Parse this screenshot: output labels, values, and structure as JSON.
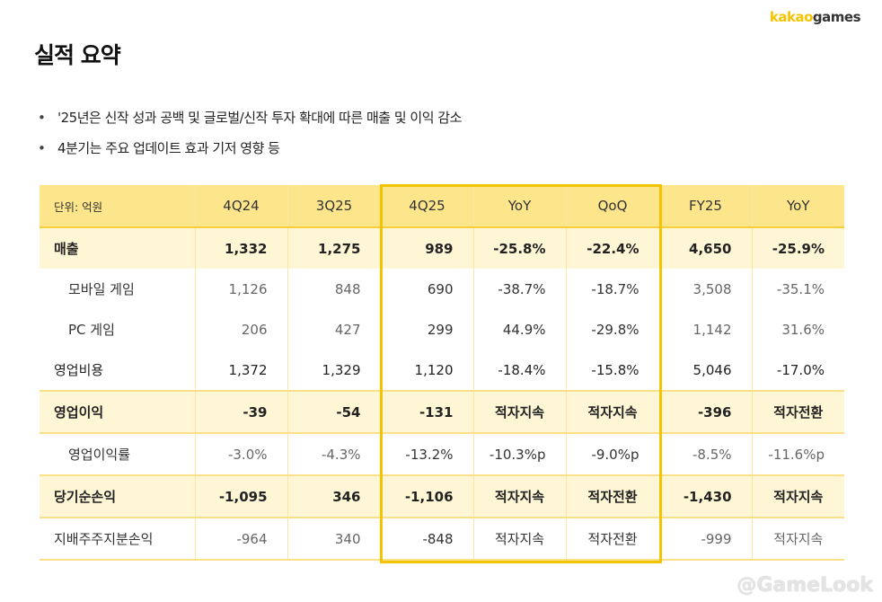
{
  "logo": {
    "part1": "kakao",
    "part2": "games"
  },
  "title": "실적 요약",
  "bullets": [
    "'25년은 신작 성과 공백 및 글로벌/신작 투자 확대에 따른 매출 및 이익 감소",
    "4분기는 주요 업데이트 효과 기저 영향 등"
  ],
  "table": {
    "unit": "단위: 억원",
    "columns": [
      "4Q24",
      "3Q25",
      "4Q25",
      "YoY",
      "QoQ",
      "FY25",
      "YoY"
    ],
    "highlighted_columns": [
      "4Q25",
      "YoY",
      "QoQ"
    ],
    "rows": [
      {
        "label": "매출",
        "values": [
          "1,332",
          "1,275",
          "989",
          "-25.8%",
          "-22.4%",
          "4,650",
          "-25.9%"
        ]
      },
      {
        "label": "모바일 게임",
        "values": [
          "1,126",
          "848",
          "690",
          "-38.7%",
          "-18.7%",
          "3,508",
          "-35.1%"
        ]
      },
      {
        "label": "PC 게임",
        "values": [
          "206",
          "427",
          "299",
          "44.9%",
          "-29.8%",
          "1,142",
          "31.6%"
        ]
      },
      {
        "label": "영업비용",
        "values": [
          "1,372",
          "1,329",
          "1,120",
          "-18.4%",
          "-15.8%",
          "5,046",
          "-17.0%"
        ]
      },
      {
        "label": "영업이익",
        "values": [
          "-39",
          "-54",
          "-131",
          "적자지속",
          "적자지속",
          "-396",
          "적자전환"
        ]
      },
      {
        "label": "영업이익률",
        "values": [
          "-3.0%",
          "-4.3%",
          "-13.2%",
          "-10.3%p",
          "-9.0%p",
          "-8.5%",
          "-11.6%p"
        ]
      },
      {
        "label": "당기순손익",
        "values": [
          "-1,095",
          "346",
          "-1,106",
          "적자지속",
          "적자전환",
          "-1,430",
          "적자지속"
        ]
      },
      {
        "label": "지배주주지분손익",
        "values": [
          "-964",
          "340",
          "-848",
          "적자지속",
          "적자전환",
          "-999",
          "적자지속"
        ]
      }
    ]
  },
  "watermark": "@GameLook",
  "colors": {
    "accent": "#f5c400",
    "header_bg": "#fde58c",
    "row_highlight": "#fff6d6"
  }
}
